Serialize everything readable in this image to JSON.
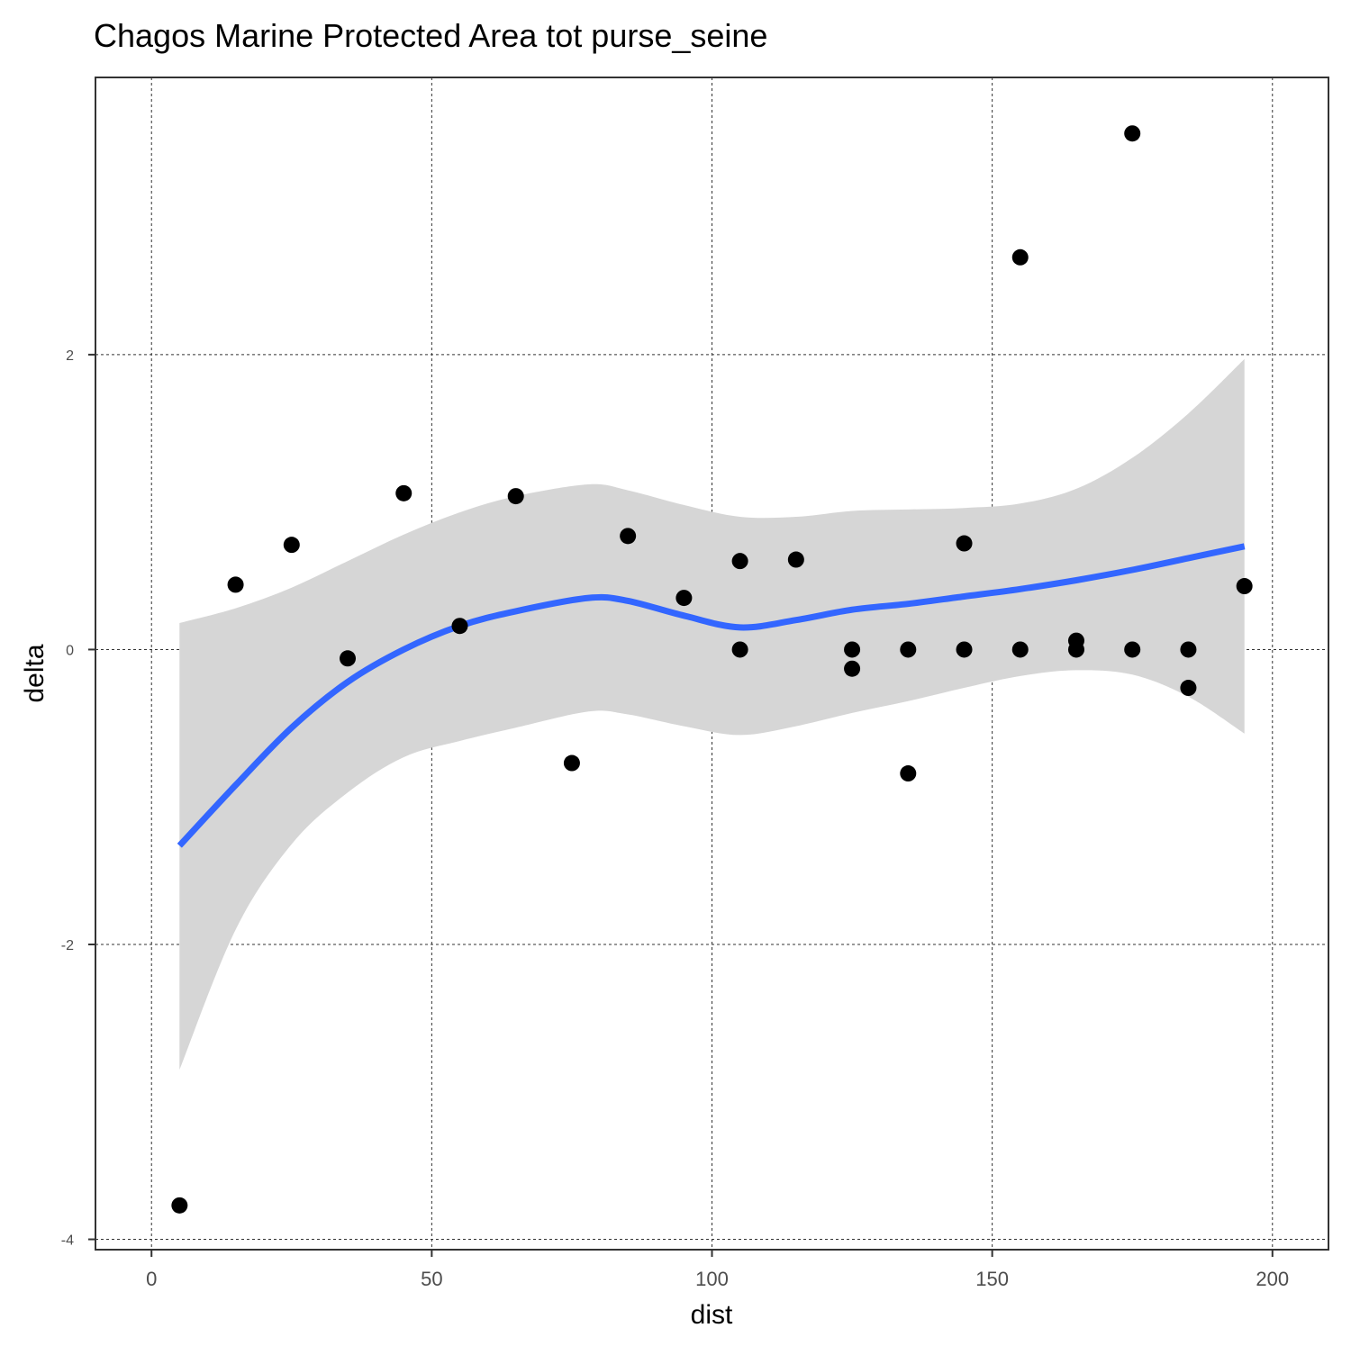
{
  "chart_data": {
    "type": "scatter",
    "title": "Chagos Marine Protected Area tot purse_seine",
    "xlabel": "dist",
    "ylabel": "delta",
    "xlim": [
      -10,
      210
    ],
    "ylim": [
      -4.07,
      3.88
    ],
    "x_ticks": [
      {
        "value": 0,
        "label": "0"
      },
      {
        "value": 50,
        "label": "50"
      },
      {
        "value": 100,
        "label": "100"
      },
      {
        "value": 150,
        "label": "150"
      },
      {
        "value": 200,
        "label": "200"
      }
    ],
    "y_ticks": [
      {
        "value": -4,
        "label": "-4"
      },
      {
        "value": -2,
        "label": "-2"
      },
      {
        "value": 0,
        "label": "0"
      },
      {
        "value": 2,
        "label": "2"
      }
    ],
    "grid": true,
    "grid_style": "dashed",
    "points": [
      {
        "x": 5,
        "y": -3.77
      },
      {
        "x": 15,
        "y": 0.44
      },
      {
        "x": 25,
        "y": 0.71
      },
      {
        "x": 35,
        "y": -0.06
      },
      {
        "x": 45,
        "y": 1.06
      },
      {
        "x": 55,
        "y": 0.16
      },
      {
        "x": 65,
        "y": 1.04
      },
      {
        "x": 75,
        "y": -0.77
      },
      {
        "x": 85,
        "y": 0.77
      },
      {
        "x": 95,
        "y": 0.35
      },
      {
        "x": 105,
        "y": 0.6
      },
      {
        "x": 105,
        "y": 0.0
      },
      {
        "x": 115,
        "y": 0.61
      },
      {
        "x": 125,
        "y": 0.0
      },
      {
        "x": 125,
        "y": -0.13
      },
      {
        "x": 135,
        "y": 0.0
      },
      {
        "x": 135,
        "y": -0.84
      },
      {
        "x": 145,
        "y": 0.72
      },
      {
        "x": 145,
        "y": 0.0
      },
      {
        "x": 155,
        "y": 2.66
      },
      {
        "x": 155,
        "y": 0.0
      },
      {
        "x": 165,
        "y": 0.06
      },
      {
        "x": 165,
        "y": 0.0
      },
      {
        "x": 175,
        "y": 3.5
      },
      {
        "x": 175,
        "y": 0.0
      },
      {
        "x": 185,
        "y": 0.0
      },
      {
        "x": 185,
        "y": -0.26
      },
      {
        "x": 195,
        "y": 0.43
      }
    ],
    "smooth": {
      "method": "loess",
      "color": "#3366ff",
      "x": [
        5,
        15,
        25,
        35,
        45,
        55,
        65,
        78,
        85,
        95,
        105,
        115,
        125,
        135,
        145,
        155,
        165,
        175,
        185,
        195
      ],
      "y": [
        -1.33,
        -0.92,
        -0.53,
        -0.22,
        0.0,
        0.16,
        0.26,
        0.35,
        0.33,
        0.23,
        0.15,
        0.2,
        0.27,
        0.31,
        0.36,
        0.41,
        0.47,
        0.54,
        0.62,
        0.7
      ],
      "lower": [
        -2.85,
        -1.9,
        -1.32,
        -0.97,
        -0.73,
        -0.62,
        -0.53,
        -0.42,
        -0.44,
        -0.52,
        -0.58,
        -0.52,
        -0.43,
        -0.35,
        -0.26,
        -0.18,
        -0.14,
        -0.17,
        -0.32,
        -0.57
      ],
      "upper": [
        0.18,
        0.28,
        0.42,
        0.6,
        0.78,
        0.93,
        1.04,
        1.12,
        1.08,
        0.98,
        0.9,
        0.9,
        0.94,
        0.95,
        0.96,
        0.99,
        1.09,
        1.3,
        1.6,
        1.97
      ]
    },
    "colors": {
      "point": "#000000",
      "ribbon": "#d6d6d6",
      "grid": "#333333",
      "panel_border": "#333333",
      "background": "#ffffff"
    }
  }
}
